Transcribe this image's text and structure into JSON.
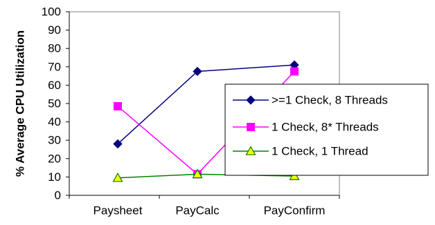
{
  "chart_data": {
    "type": "line",
    "title": "",
    "xlabel": "",
    "ylabel": "% Average CPU Utilization",
    "categories": [
      "Paysheet",
      "PayCalc",
      "PayConfirm"
    ],
    "ylim": [
      0,
      100
    ],
    "yticks": [
      "0",
      "10",
      "20",
      "30",
      "40",
      "50",
      "60",
      "70",
      "80",
      "90",
      "100"
    ],
    "grid": false,
    "legend_position": "right",
    "series": [
      {
        "name": ">=1 Check, 8 Threads",
        "values": [
          28,
          67.5,
          71
        ],
        "color": "#000080",
        "marker": "diamond"
      },
      {
        "name": "1 Check, 8* Threads",
        "values": [
          48.5,
          11.5,
          67.5
        ],
        "color": "#FF00FF",
        "marker": "square"
      },
      {
        "name": "1 Check, 1 Thread",
        "values": [
          9.5,
          11.5,
          10.5
        ],
        "color": "#008000",
        "marker": "triangle",
        "marker_fill": "#FFFF00"
      }
    ]
  }
}
